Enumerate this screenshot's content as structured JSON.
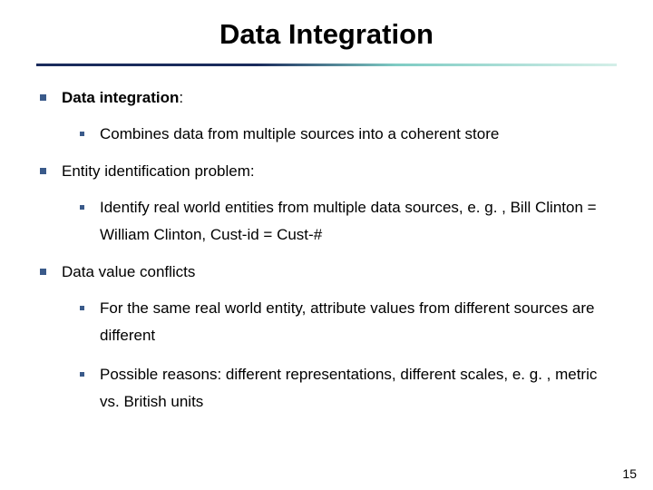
{
  "title": "Data Integration",
  "page_number": "15",
  "bullets": [
    {
      "label": "Data integration",
      "label_bold": true,
      "suffix": ":",
      "children": [
        {
          "text": "Combines data from multiple sources into a coherent store"
        }
      ]
    },
    {
      "label": "Entity identification problem:",
      "label_bold": false,
      "suffix": "",
      "children": [
        {
          "text": "Identify real world entities from multiple data sources, e. g. , Bill Clinton = William Clinton, Cust-id = Cust-#"
        }
      ]
    },
    {
      "label": "Data value conflicts",
      "label_bold": false,
      "suffix": "",
      "children": [
        {
          "text": "For the same real world entity, attribute values from different sources are different"
        },
        {
          "text": "Possible reasons: different representations, different scales, e. g. , metric vs. British units"
        }
      ]
    }
  ],
  "colors": {
    "bullet": "#3a5a8a",
    "text": "#000000",
    "background": "#ffffff",
    "divider_start": "#1a2b5c",
    "divider_end": "#d4efe8"
  },
  "typography": {
    "title_fontsize": 31,
    "body_fontsize": 17,
    "page_num_fontsize": 14
  }
}
